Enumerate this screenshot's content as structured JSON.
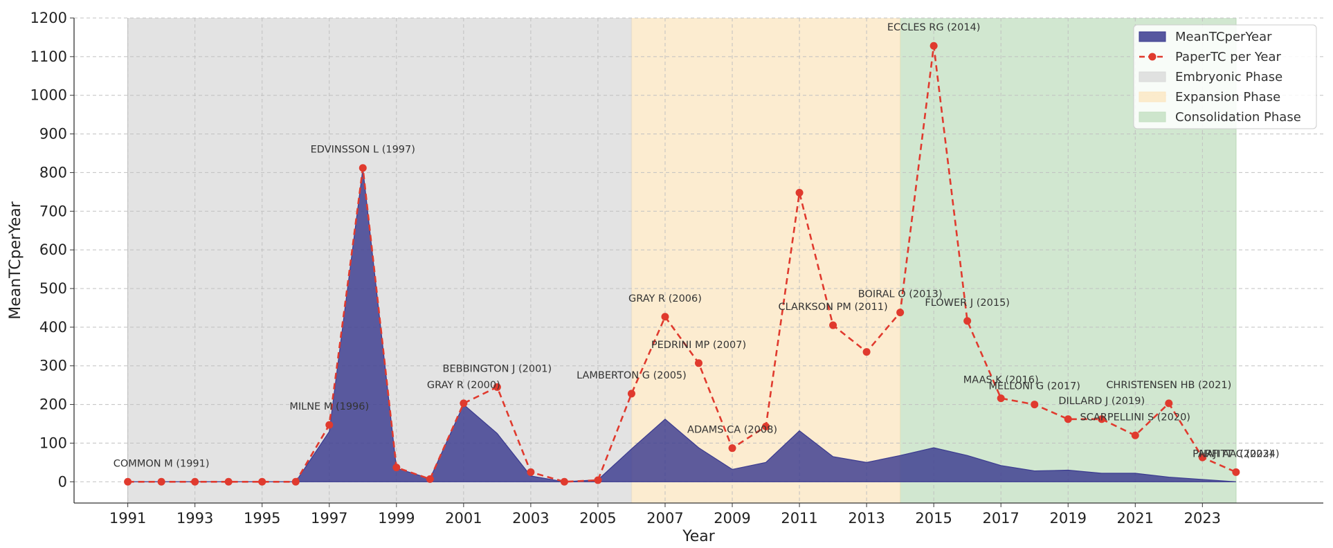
{
  "chart_data": {
    "type": "area",
    "title": "",
    "xlabel": "Year",
    "ylabel": "MeanTCperYear",
    "xlim": [
      1989.4,
      2026.6
    ],
    "ylim": [
      -55,
      1200
    ],
    "x_ticks": [
      1991,
      1993,
      1995,
      1997,
      1999,
      2001,
      2003,
      2005,
      2007,
      2009,
      2011,
      2013,
      2015,
      2017,
      2019,
      2021,
      2023
    ],
    "y_ticks": [
      0,
      100,
      200,
      300,
      400,
      500,
      600,
      700,
      800,
      900,
      1000,
      1100,
      1200
    ],
    "grid": true,
    "legend_position": "top-right",
    "x": [
      1991,
      1992,
      1993,
      1994,
      1995,
      1996,
      1997,
      1998,
      1999,
      2000,
      2001,
      2002,
      2003,
      2004,
      2005,
      2006,
      2007,
      2008,
      2009,
      2010,
      2011,
      2012,
      2013,
      2014,
      2015,
      2016,
      2017,
      2018,
      2019,
      2020,
      2021,
      2022,
      2023,
      2024
    ],
    "series": [
      {
        "name": "MeanTCperYear",
        "kind": "area",
        "color": "#3a3a8f",
        "values": [
          0,
          0,
          0,
          0,
          0,
          0,
          130,
          810,
          35,
          8,
          200,
          125,
          15,
          0,
          5,
          85,
          162,
          88,
          32,
          50,
          132,
          65,
          50,
          68,
          88,
          68,
          42,
          28,
          30,
          22,
          22,
          12,
          6,
          0
        ]
      },
      {
        "name": "PaperTC per Year",
        "kind": "line",
        "color": "#e03a2e",
        "values": [
          0,
          0,
          0,
          0,
          0,
          0,
          147,
          812,
          37,
          7,
          203,
          245,
          25,
          0,
          4,
          228,
          427,
          307,
          87,
          143,
          748,
          405,
          336,
          438,
          1128,
          416,
          216,
          200,
          162,
          162,
          120,
          203,
          63,
          25
        ]
      }
    ],
    "phases": [
      {
        "name": "Embryonic Phase",
        "start": 1991,
        "end": 2006,
        "color": "#d9d9d9"
      },
      {
        "name": "Expansion Phase",
        "start": 2006,
        "end": 2014,
        "color": "#fbe6c0"
      },
      {
        "name": "Consolidation Phase",
        "start": 2014,
        "end": 2024,
        "color": "#c2dfc0"
      }
    ],
    "annotations": [
      {
        "text": "COMMON M (1991)",
        "year": 1991
      },
      {
        "text": "MILNE M (1996)",
        "year": 1996
      },
      {
        "text": "EDVINSSON L (1997)",
        "year": 1997
      },
      {
        "text": "GRAY R (2000)",
        "year": 2000
      },
      {
        "text": "BEBBINGTON J (2001)",
        "year": 2001
      },
      {
        "text": "LAMBERTON G (2005)",
        "year": 2005
      },
      {
        "text": "GRAY R (2006)",
        "year": 2006
      },
      {
        "text": "PEDRINI MP (2007)",
        "year": 2007
      },
      {
        "text": "ADAMS CA (2008)",
        "year": 2008
      },
      {
        "text": "CLARKSON PM (2011)",
        "year": 2011
      },
      {
        "text": "BOIRAL O (2013)",
        "year": 2013
      },
      {
        "text": "ECCLES RG (2014)",
        "year": 2014
      },
      {
        "text": "FLOWER J (2015)",
        "year": 2015
      },
      {
        "text": "MAAS K (2016)",
        "year": 2016
      },
      {
        "text": "MELLONI G (2017)",
        "year": 2017
      },
      {
        "text": "DILLARD J (2019)",
        "year": 2019
      },
      {
        "text": "SCARPELLINI S (2020)",
        "year": 2020
      },
      {
        "text": "CHRISTENSEN HB (2021)",
        "year": 2021
      },
      {
        "text": "HAJI AA (2023)",
        "year": 2023
      },
      {
        "text": "PARFITT C (2024)",
        "year": 2024
      }
    ]
  }
}
